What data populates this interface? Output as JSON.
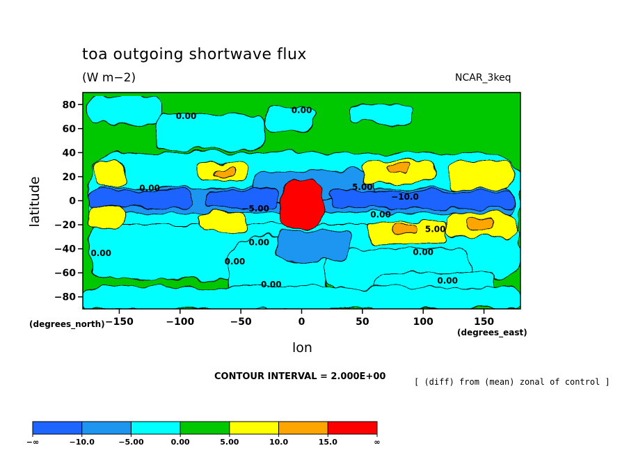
{
  "chart_data": {
    "type": "heatmap",
    "title": "toa outgoing shortwave flux",
    "units": "(W m−2)",
    "model": "NCAR_3keq",
    "xlabel": "lon",
    "ylabel": "latitude",
    "x_note": "(degrees_east)",
    "y_note": "(degrees_north)",
    "xlim": [
      -180,
      180
    ],
    "ylim": [
      -90,
      90
    ],
    "x_ticks": [
      {
        "value": -150,
        "label": "−150"
      },
      {
        "value": -100,
        "label": "−100"
      },
      {
        "value": -50,
        "label": "−50"
      },
      {
        "value": 0,
        "label": "0"
      },
      {
        "value": 50,
        "label": "50"
      },
      {
        "value": 100,
        "label": "100"
      },
      {
        "value": 150,
        "label": "150"
      }
    ],
    "y_ticks": [
      {
        "value": 80,
        "label": "80"
      },
      {
        "value": 60,
        "label": "60"
      },
      {
        "value": 40,
        "label": "40"
      },
      {
        "value": 20,
        "label": "20"
      },
      {
        "value": 0,
        "label": "0"
      },
      {
        "value": -20,
        "label": "−20"
      },
      {
        "value": -40,
        "label": "−40"
      },
      {
        "value": -60,
        "label": "−60"
      },
      {
        "value": -80,
        "label": "−80"
      }
    ],
    "contour_interval": "CONTOUR INTERVAL = 2.000E+00",
    "note": "[ (diff) from (mean) zonal of control ]",
    "background_level_color": "#00c800",
    "levels": [
      {
        "label": "−∞",
        "color": "#1e64ff"
      },
      {
        "label": "−10.0",
        "color": "#1e96f0"
      },
      {
        "label": "−5.00",
        "color": "#00ffff"
      },
      {
        "label": "0.00",
        "color": "#00c800"
      },
      {
        "label": "5.00",
        "color": "#ffff00"
      },
      {
        "label": "10.0",
        "color": "#ffa500"
      },
      {
        "label": "15.0",
        "color": "#ff0000"
      },
      {
        "label": "∞",
        "color": ""
      }
    ],
    "regions": [
      {
        "level": 2,
        "lon": -175,
        "lat": 87,
        "w": 60,
        "h": 22
      },
      {
        "level": 2,
        "lon": -120,
        "lat": 72,
        "w": 90,
        "h": 30
      },
      {
        "level": 2,
        "lon": -30,
        "lat": 78,
        "w": 40,
        "h": 20
      },
      {
        "level": 2,
        "lon": 40,
        "lat": 80,
        "w": 50,
        "h": 15
      },
      {
        "level": 2,
        "lon": -175,
        "lat": 40,
        "w": 355,
        "h": 75
      },
      {
        "level": 2,
        "lon": -175,
        "lat": -20,
        "w": 355,
        "h": 45
      },
      {
        "level": 2,
        "lon": -60,
        "lat": -30,
        "w": 80,
        "h": 65
      },
      {
        "level": 2,
        "lon": 20,
        "lat": -40,
        "w": 120,
        "h": 35
      },
      {
        "level": 2,
        "lon": 60,
        "lat": -60,
        "w": 100,
        "h": 30
      },
      {
        "level": 2,
        "lon": -180,
        "lat": -72,
        "w": 360,
        "h": 18
      },
      {
        "level": 1,
        "lon": -170,
        "lat": 10,
        "w": 345,
        "h": 20
      },
      {
        "level": 1,
        "lon": -40,
        "lat": 25,
        "w": 100,
        "h": 25
      },
      {
        "level": 1,
        "lon": -20,
        "lat": -25,
        "w": 60,
        "h": 25
      },
      {
        "level": 0,
        "lon": -175,
        "lat": 8,
        "w": 85,
        "h": 13
      },
      {
        "level": 0,
        "lon": -80,
        "lat": 8,
        "w": 60,
        "h": 14
      },
      {
        "level": 0,
        "lon": 25,
        "lat": 8,
        "w": 150,
        "h": 14
      },
      {
        "level": 4,
        "lon": -170,
        "lat": 33,
        "w": 25,
        "h": 22
      },
      {
        "level": 4,
        "lon": -85,
        "lat": 32,
        "w": 40,
        "h": 15
      },
      {
        "level": 4,
        "lon": 50,
        "lat": 33,
        "w": 60,
        "h": 18
      },
      {
        "level": 4,
        "lon": 120,
        "lat": 33,
        "w": 55,
        "h": 23
      },
      {
        "level": 4,
        "lon": -175,
        "lat": -5,
        "w": 30,
        "h": 18
      },
      {
        "level": 4,
        "lon": -85,
        "lat": -10,
        "w": 40,
        "h": 15
      },
      {
        "level": 4,
        "lon": 55,
        "lat": -18,
        "w": 65,
        "h": 18
      },
      {
        "level": 4,
        "lon": 120,
        "lat": -10,
        "w": 55,
        "h": 20
      },
      {
        "level": 5,
        "lon": -70,
        "lat": 27,
        "w": 15,
        "h": 7
      },
      {
        "level": 5,
        "lon": 70,
        "lat": 30,
        "w": 18,
        "h": 8
      },
      {
        "level": 5,
        "lon": 135,
        "lat": -15,
        "w": 25,
        "h": 10
      },
      {
        "level": 5,
        "lon": 75,
        "lat": -20,
        "w": 20,
        "h": 8
      },
      {
        "level": 6,
        "lon": -17,
        "lat": 17,
        "w": 35,
        "h": 40
      }
    ],
    "contour_labels": [
      {
        "text": "0.00",
        "lon": 0,
        "lat": 73
      },
      {
        "text": "0.00",
        "lon": -95,
        "lat": 68
      },
      {
        "text": "5.00",
        "lon": 50,
        "lat": 9
      },
      {
        "text": "−10.0",
        "lon": 85,
        "lat": 1
      },
      {
        "text": "−5.00",
        "lon": -38,
        "lat": -9
      },
      {
        "text": "0.00",
        "lon": 65,
        "lat": -14
      },
      {
        "text": "5.00",
        "lon": 110,
        "lat": -26
      },
      {
        "text": "0.00",
        "lon": -35,
        "lat": -37
      },
      {
        "text": "0.00",
        "lon": -55,
        "lat": -53
      },
      {
        "text": "0.00",
        "lon": 100,
        "lat": -45
      },
      {
        "text": "0.00",
        "lon": -165,
        "lat": -46
      },
      {
        "text": "0.00",
        "lon": 120,
        "lat": -69
      },
      {
        "text": "0.00",
        "lon": -25,
        "lat": -72
      },
      {
        "text": "0.00",
        "lon": -125,
        "lat": 8
      }
    ]
  }
}
